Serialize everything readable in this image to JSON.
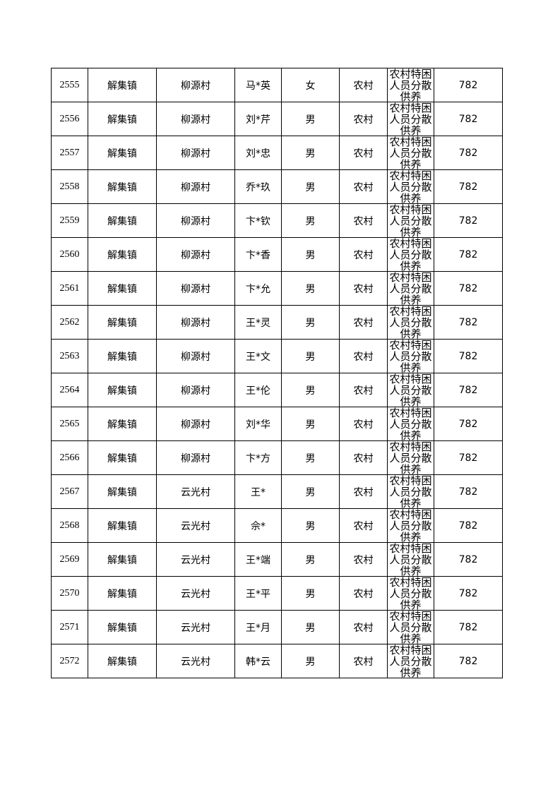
{
  "table": {
    "rows": [
      [
        "2555",
        "解集镇",
        "柳源村",
        "马*英",
        "女",
        "农村",
        "农村特困人员分散供养",
        "782"
      ],
      [
        "2556",
        "解集镇",
        "柳源村",
        "刘*芹",
        "男",
        "农村",
        "农村特困人员分散供养",
        "782"
      ],
      [
        "2557",
        "解集镇",
        "柳源村",
        "刘*忠",
        "男",
        "农村",
        "农村特困人员分散供养",
        "782"
      ],
      [
        "2558",
        "解集镇",
        "柳源村",
        "乔*玖",
        "男",
        "农村",
        "农村特困人员分散供养",
        "782"
      ],
      [
        "2559",
        "解集镇",
        "柳源村",
        "卞*钦",
        "男",
        "农村",
        "农村特困人员分散供养",
        "782"
      ],
      [
        "2560",
        "解集镇",
        "柳源村",
        "卞*香",
        "男",
        "农村",
        "农村特困人员分散供养",
        "782"
      ],
      [
        "2561",
        "解集镇",
        "柳源村",
        "卞*允",
        "男",
        "农村",
        "农村特困人员分散供养",
        "782"
      ],
      [
        "2562",
        "解集镇",
        "柳源村",
        "王*灵",
        "男",
        "农村",
        "农村特困人员分散供养",
        "782"
      ],
      [
        "2563",
        "解集镇",
        "柳源村",
        "王*文",
        "男",
        "农村",
        "农村特困人员分散供养",
        "782"
      ],
      [
        "2564",
        "解集镇",
        "柳源村",
        "王*伦",
        "男",
        "农村",
        "农村特困人员分散供养",
        "782"
      ],
      [
        "2565",
        "解集镇",
        "柳源村",
        "刘*华",
        "男",
        "农村",
        "农村特困人员分散供养",
        "782"
      ],
      [
        "2566",
        "解集镇",
        "柳源村",
        "卞*方",
        "男",
        "农村",
        "农村特困人员分散供养",
        "782"
      ],
      [
        "2567",
        "解集镇",
        "云光村",
        "王*",
        "男",
        "农村",
        "农村特困人员分散供养",
        "782"
      ],
      [
        "2568",
        "解集镇",
        "云光村",
        "佘*",
        "男",
        "农村",
        "农村特困人员分散供养",
        "782"
      ],
      [
        "2569",
        "解集镇",
        "云光村",
        "王*端",
        "男",
        "农村",
        "农村特困人员分散供养",
        "782"
      ],
      [
        "2570",
        "解集镇",
        "云光村",
        "王*平",
        "男",
        "农村",
        "农村特困人员分散供养",
        "782"
      ],
      [
        "2571",
        "解集镇",
        "云光村",
        "王*月",
        "男",
        "农村",
        "农村特困人员分散供养",
        "782"
      ],
      [
        "2572",
        "解集镇",
        "云光村",
        "韩*云",
        "男",
        "农村",
        "农村特困人员分散供养",
        "782"
      ]
    ]
  }
}
